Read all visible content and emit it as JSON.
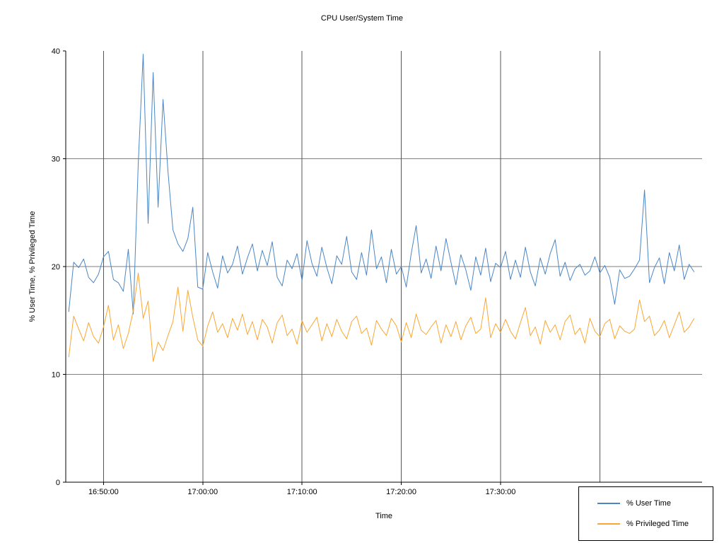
{
  "chart_data": {
    "type": "line",
    "title": "CPU User/System Time",
    "xlabel": "Time",
    "ylabel": "% User Time, % Privileged Time",
    "ylim": [
      0,
      40
    ],
    "y_ticks": [
      0,
      10,
      20,
      30,
      40
    ],
    "y_gridlines": [
      10,
      20,
      30
    ],
    "x_domain_min": [
      -0.3,
      63.8
    ],
    "x_start_min": 0,
    "sample_step_min": 0.5,
    "x_ticks": [
      {
        "t": 3.5,
        "label": "16:50:00"
      },
      {
        "t": 13.5,
        "label": "17:00:00"
      },
      {
        "t": 23.5,
        "label": "17:10:00"
      },
      {
        "t": 33.5,
        "label": "17:20:00"
      },
      {
        "t": 43.5,
        "label": "17:30:00"
      },
      {
        "t": 53.5,
        "label": ""
      }
    ],
    "legend_position": "bottom-right",
    "series": [
      {
        "name": "% User Time",
        "color": "#4a86c6",
        "values": [
          15.8,
          20.4,
          19.9,
          20.7,
          19.0,
          18.5,
          19.3,
          20.9,
          21.4,
          18.8,
          18.5,
          17.7,
          21.6,
          15.6,
          29.5,
          39.7,
          24.0,
          38.0,
          25.5,
          35.5,
          28.8,
          23.4,
          22.1,
          21.4,
          22.6,
          25.5,
          18.1,
          17.9,
          21.3,
          19.5,
          18.0,
          21.0,
          19.4,
          20.2,
          21.9,
          19.3,
          20.8,
          22.1,
          19.6,
          21.5,
          20.1,
          22.3,
          19.0,
          18.2,
          20.6,
          19.8,
          21.2,
          18.7,
          22.4,
          20.3,
          19.1,
          21.8,
          19.9,
          18.4,
          21.0,
          20.2,
          22.8,
          19.5,
          18.8,
          21.3,
          19.2,
          23.4,
          19.8,
          20.9,
          18.5,
          21.6,
          19.3,
          20.0,
          18.1,
          21.2,
          23.8,
          19.4,
          20.7,
          18.9,
          21.9,
          19.6,
          22.6,
          20.4,
          18.3,
          21.1,
          19.7,
          17.8,
          20.9,
          19.2,
          21.7,
          18.6,
          20.3,
          19.9,
          21.4,
          18.8,
          20.6,
          19.0,
          21.8,
          19.5,
          18.2,
          20.8,
          19.3,
          21.2,
          22.5,
          19.1,
          20.4,
          18.7,
          19.8,
          20.2,
          19.2,
          19.6,
          20.9,
          19.4,
          20.1,
          19.0,
          16.5,
          19.7,
          18.9,
          19.1,
          19.8,
          20.6,
          27.1,
          18.5,
          19.9,
          20.8,
          18.4,
          21.3,
          19.6,
          22.0,
          18.8,
          20.2,
          19.5
        ]
      },
      {
        "name": "% Privileged Time",
        "color": "#faa632",
        "values": [
          11.6,
          15.4,
          14.2,
          13.1,
          14.8,
          13.5,
          12.9,
          14.4,
          16.4,
          13.2,
          14.6,
          12.4,
          13.8,
          15.9,
          19.4,
          15.2,
          16.8,
          11.2,
          13.0,
          12.2,
          13.6,
          14.9,
          18.1,
          14.0,
          17.8,
          15.3,
          13.2,
          12.6,
          14.5,
          15.8,
          13.9,
          14.7,
          13.4,
          15.2,
          14.1,
          15.6,
          13.7,
          14.9,
          13.2,
          15.1,
          14.4,
          12.9,
          14.8,
          15.5,
          13.6,
          14.2,
          12.8,
          15.0,
          13.9,
          14.6,
          15.3,
          13.1,
          14.7,
          13.5,
          15.1,
          14.0,
          13.3,
          14.9,
          15.4,
          13.8,
          14.3,
          12.7,
          15.0,
          14.2,
          13.6,
          15.2,
          14.5,
          13.0,
          14.8,
          13.4,
          15.6,
          14.1,
          13.7,
          14.4,
          15.0,
          12.9,
          14.6,
          13.5,
          14.9,
          13.2,
          14.5,
          15.3,
          13.8,
          14.2,
          17.1,
          13.4,
          14.7,
          13.9,
          15.1,
          14.0,
          13.3,
          14.8,
          16.2,
          13.6,
          14.4,
          12.8,
          15.0,
          13.9,
          14.6,
          13.2,
          14.9,
          15.5,
          13.7,
          14.3,
          12.9,
          15.2,
          14.0,
          13.5,
          14.7,
          15.1,
          13.3,
          14.5,
          14.0,
          13.8,
          14.2,
          16.9,
          14.9,
          15.4,
          13.6,
          14.1,
          15.0,
          13.4,
          14.6,
          15.8,
          13.9,
          14.4,
          15.2
        ]
      }
    ]
  }
}
